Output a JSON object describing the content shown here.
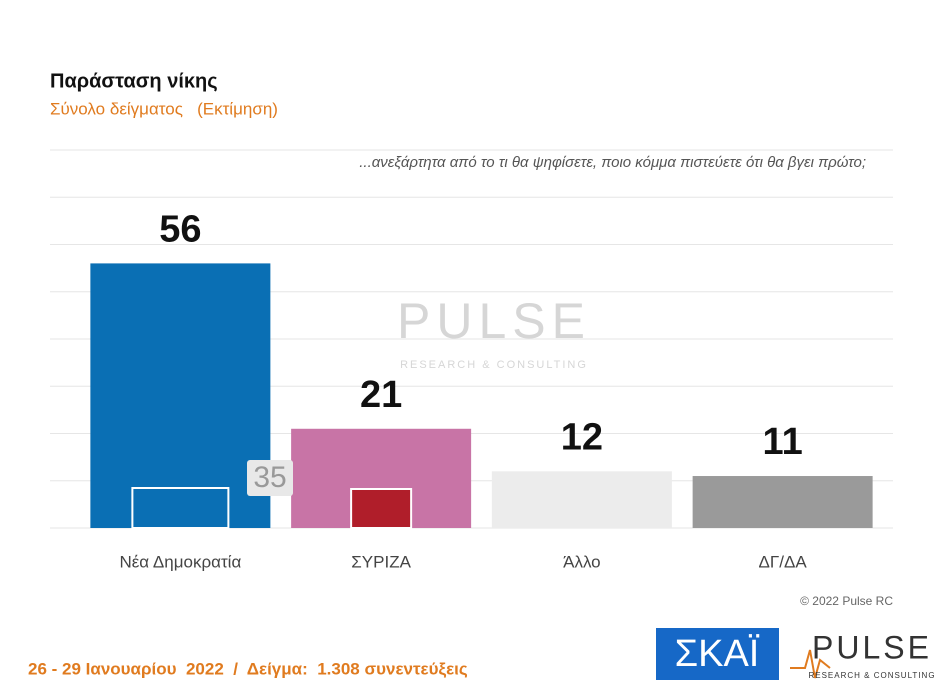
{
  "chart_data": {
    "type": "bar",
    "title": "Παράσταση νίκης",
    "subtitle": "Σύνολο δείγματος   (Εκτίμηση)",
    "question": "...ανεξάρτητα από το τι θα ψηφίσετε, ποιο κόμμα πιστεύετε ότι θα βγει πρώτο;",
    "categories": [
      "Νέα Δημοκρατία",
      "ΣΥΡΙΖΑ",
      "Άλλο",
      "ΔΓ/ΔΑ"
    ],
    "values": [
      56,
      21,
      12,
      11
    ],
    "colors": [
      "#0a6fb4",
      "#c874a6",
      "#ececec",
      "#9a9a9a"
    ],
    "ylim": [
      0,
      80
    ],
    "yticks": [
      0,
      10,
      20,
      30,
      40,
      50,
      60,
      70,
      80
    ],
    "grid": true,
    "annotation": "35",
    "watermark": "PULSE",
    "watermark_sub": "RESEARCH & CONSULTING",
    "copyright": "© 2022 Pulse RC",
    "footer": "26 - 29 Ιανουαρίου  2022  /  Δείγμα:  1.308 συνεντεύξεις",
    "brand_1": "ΣΚΑΪ",
    "brand_2": "PULSE",
    "brand_2_sub": "RESEARCH & CONSULTING"
  }
}
